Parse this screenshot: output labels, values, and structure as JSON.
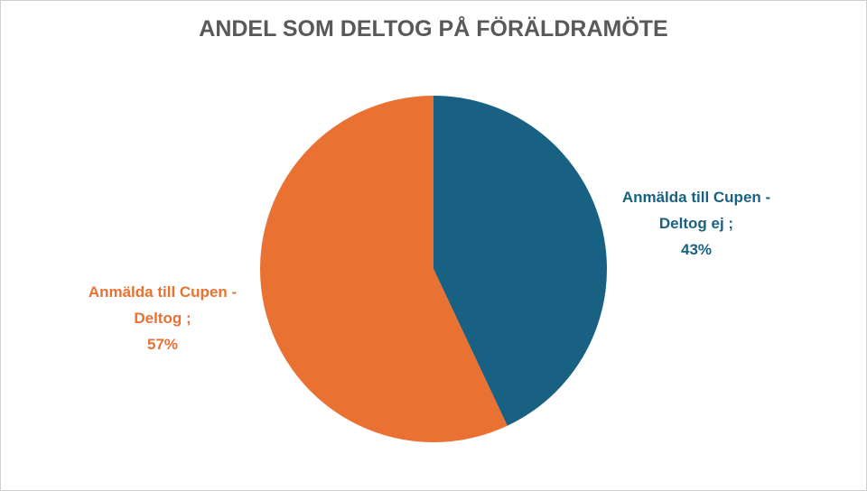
{
  "chart_data": {
    "type": "pie",
    "title": "ANDEL SOM DELTOG PÅ FÖRÄLDRAMÖTE",
    "categories": [
      "Anmälda till Cupen - Deltog ej",
      "Anmälda till Cupen - Deltog"
    ],
    "values": [
      43,
      57
    ],
    "value_labels": [
      "43%",
      "57%"
    ],
    "colors": [
      "#196183",
      "#e97132"
    ],
    "label_separator": ";"
  }
}
